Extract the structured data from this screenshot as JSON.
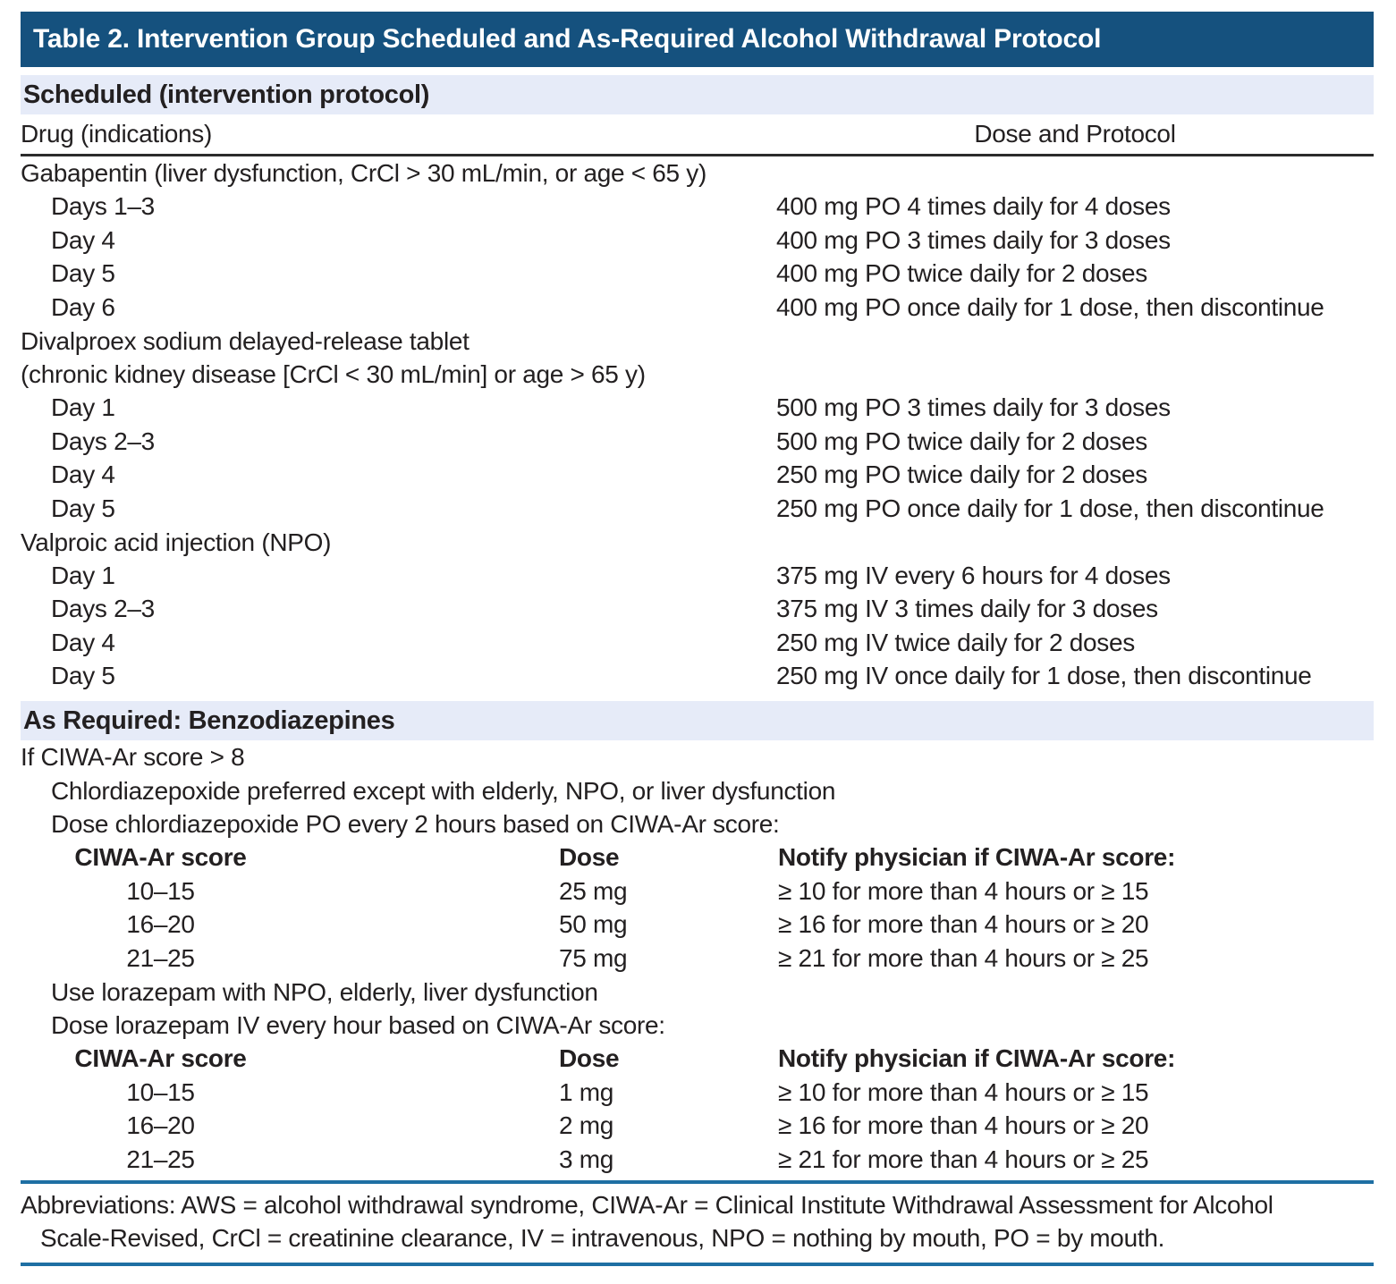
{
  "title": "Table 2. Intervention Group Scheduled and As-Required Alcohol Withdrawal Protocol",
  "colors": {
    "title_bar_bg": "#15517E",
    "title_text": "#FFFFFF",
    "section_band_bg": "#E6EBF8",
    "rule_blue": "#1E6FA3",
    "rule_dark": "#2B2B2B",
    "body_text": "#232021"
  },
  "scheduled": {
    "band_label": "Scheduled (intervention protocol)",
    "col_headers": {
      "drug": "Drug (indications)",
      "dose": "Dose and Protocol"
    },
    "groups": [
      {
        "name": "Gabapentin (liver dysfunction, CrCl > 30 mL/min, or age < 65 y)",
        "rows": [
          {
            "day": "Days 1–3",
            "dose": "400 mg PO 4 times daily for 4 doses"
          },
          {
            "day": "Day 4",
            "dose": "400 mg PO 3 times daily for 3 doses"
          },
          {
            "day": "Day 5",
            "dose": "400 mg PO twice daily for 2 doses"
          },
          {
            "day": "Day 6",
            "dose": "400 mg PO once daily for 1 dose, then discontinue"
          }
        ]
      },
      {
        "name": "Divalproex sodium delayed-release tablet",
        "name_line2": "(chronic kidney disease [CrCl < 30 mL/min] or age > 65 y)",
        "rows": [
          {
            "day": "Day 1",
            "dose": "500 mg PO 3 times daily for 3 doses"
          },
          {
            "day": "Days 2–3",
            "dose": "500 mg PO twice daily for 2 doses"
          },
          {
            "day": "Day 4",
            "dose": "250 mg PO twice daily for 2 doses"
          },
          {
            "day": "Day 5",
            "dose": "250 mg PO once daily for 1 dose, then discontinue"
          }
        ]
      },
      {
        "name": "Valproic acid injection (NPO)",
        "rows": [
          {
            "day": "Day 1",
            "dose": "375 mg IV every 6 hours for 4 doses"
          },
          {
            "day": "Days 2–3",
            "dose": "375 mg IV 3 times daily for 3 doses"
          },
          {
            "day": "Day 4",
            "dose": "250 mg IV twice daily for 2 doses"
          },
          {
            "day": "Day 5",
            "dose": "250 mg IV once daily for 1 dose, then discontinue"
          }
        ]
      }
    ]
  },
  "as_required": {
    "band_label": "As Required: Benzodiazepines",
    "intro": "If CIWA-Ar score > 8",
    "blocks": [
      {
        "note": "Chlordiazepoxide preferred except with elderly, NPO, or liver dysfunction",
        "dosing_line": "Dose chlordiazepoxide PO every 2 hours based on CIWA-Ar score:",
        "headers": {
          "score": "CIWA-Ar score",
          "dose": "Dose",
          "notify": "Notify physician if CIWA-Ar score:"
        },
        "rows": [
          {
            "score": "10–15",
            "dose": "25 mg",
            "notify": "≥ 10 for more than 4 hours or ≥ 15"
          },
          {
            "score": "16–20",
            "dose": "50 mg",
            "notify": "≥ 16 for more than 4 hours or ≥ 20"
          },
          {
            "score": "21–25",
            "dose": "75 mg",
            "notify": "≥ 21 for more than 4 hours or ≥ 25"
          }
        ]
      },
      {
        "note": "Use lorazepam with NPO, elderly, liver dysfunction",
        "dosing_line": "Dose lorazepam IV every hour based on CIWA-Ar score:",
        "headers": {
          "score": "CIWA-Ar score",
          "dose": "Dose",
          "notify": "Notify physician if CIWA-Ar score:"
        },
        "rows": [
          {
            "score": "10–15",
            "dose": "1 mg",
            "notify": "≥ 10 for more than 4 hours or ≥ 15"
          },
          {
            "score": "16–20",
            "dose": "2 mg",
            "notify": "≥ 16 for more than 4 hours or ≥ 20"
          },
          {
            "score": "21–25",
            "dose": "3 mg",
            "notify": "≥ 21 for more than 4 hours or ≥ 25"
          }
        ]
      }
    ]
  },
  "footnote": {
    "line1": "Abbreviations: AWS = alcohol withdrawal syndrome, CIWA-Ar = Clinical Institute Withdrawal Assessment for Alcohol",
    "line2": "Scale-Revised, CrCl = creatinine clearance, IV = intravenous, NPO = nothing by mouth, PO = by mouth."
  }
}
